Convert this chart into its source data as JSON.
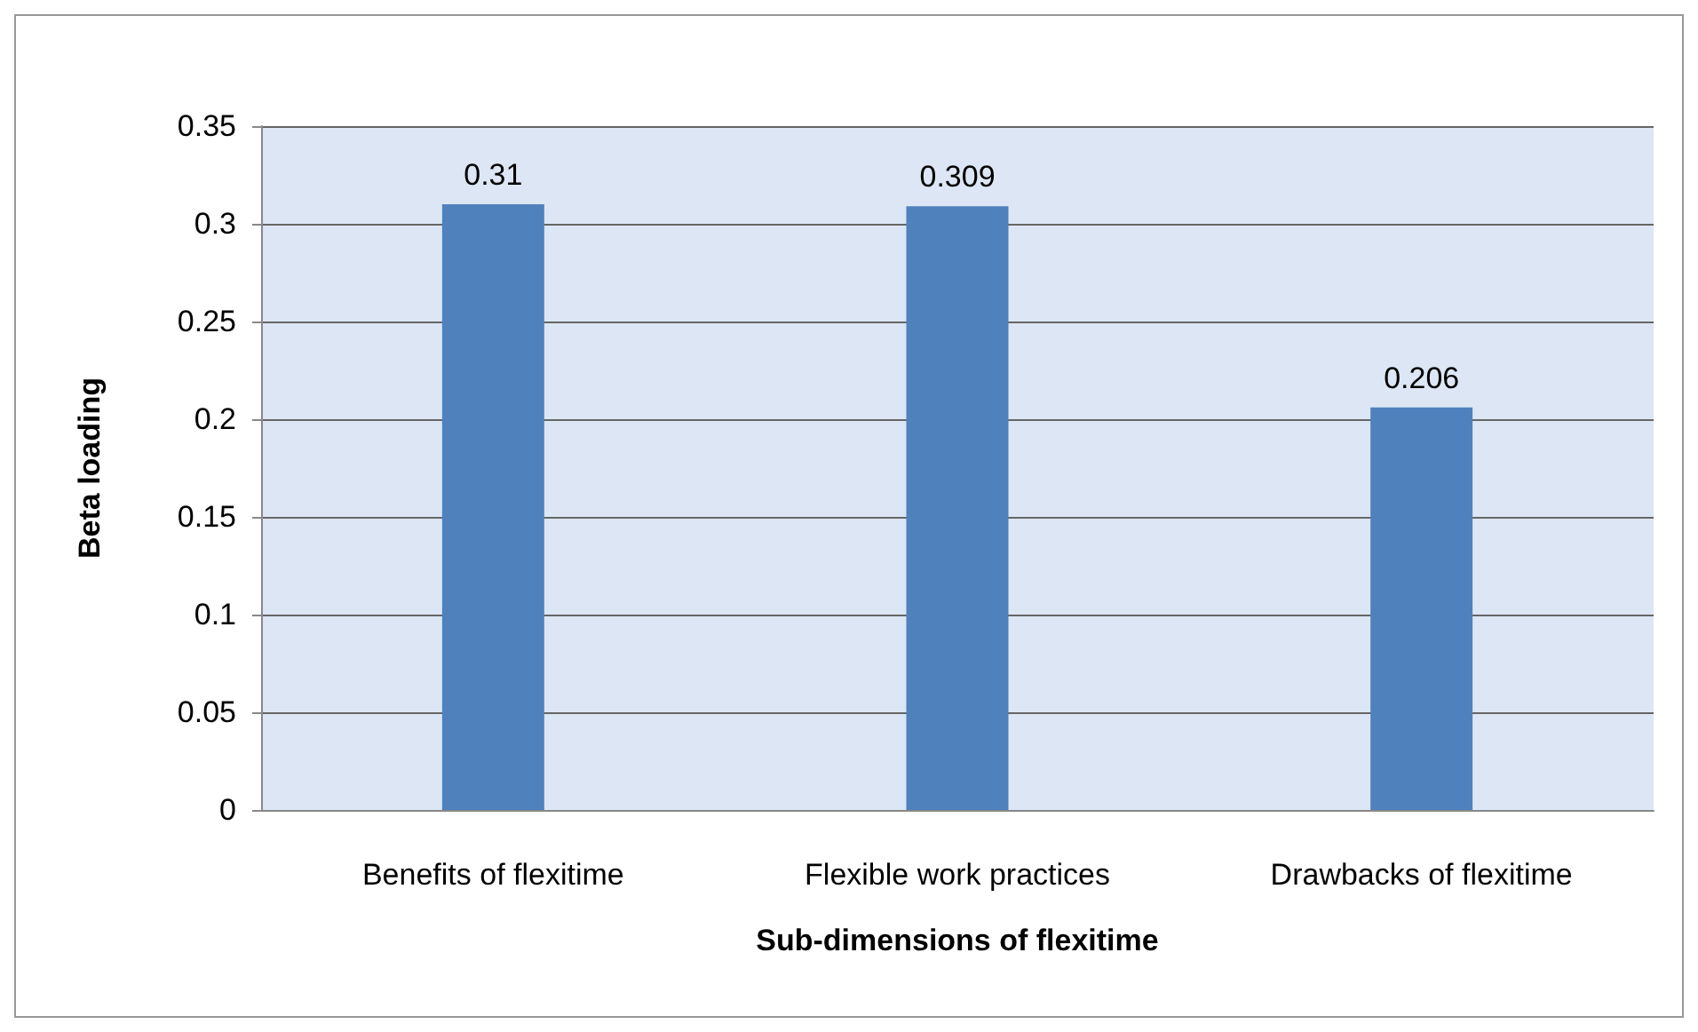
{
  "chart_data": {
    "type": "bar",
    "xlabel": "Sub-dimensions of flexitime",
    "ylabel": "Beta loading",
    "categories": [
      "Benefits of flexitime",
      "Flexible work practices",
      "Drawbacks of flexitime"
    ],
    "values": [
      0.31,
      0.309,
      0.206
    ],
    "color": "#4f81bd",
    "ylim": [
      0,
      0.35
    ],
    "yticks": [
      0,
      0.05,
      0.1,
      0.15,
      0.2,
      0.25,
      0.3,
      0.35
    ],
    "grid": "y",
    "data_labels": true
  }
}
